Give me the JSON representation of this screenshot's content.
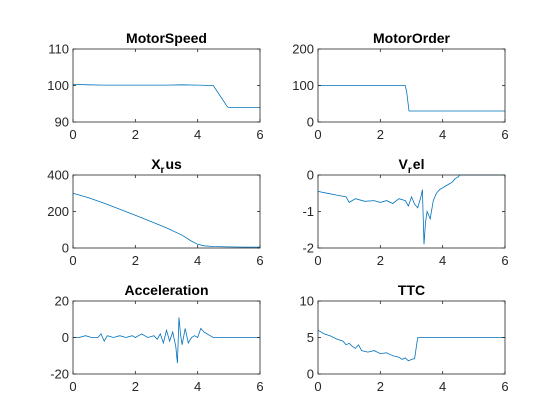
{
  "chart_data": [
    {
      "type": "line",
      "title": "MotorSpeed",
      "xlim": [
        0,
        6
      ],
      "ylim": [
        90,
        110
      ],
      "xticks": [
        0,
        2,
        4,
        6
      ],
      "yticks": [
        90,
        100,
        110
      ],
      "grid": false,
      "color": "#0072BD",
      "x": [
        0,
        0.5,
        1,
        2,
        3,
        3.5,
        4,
        4.5,
        4.95,
        5,
        5.5,
        6
      ],
      "y": [
        100.3,
        100.2,
        100.1,
        100.1,
        100.1,
        100.2,
        100.1,
        100.0,
        94.2,
        94.0,
        94.0,
        94.0
      ]
    },
    {
      "type": "line",
      "title": "MotorOrder",
      "xlim": [
        0,
        6
      ],
      "ylim": [
        0,
        200
      ],
      "xticks": [
        0,
        2,
        4,
        6
      ],
      "yticks": [
        0,
        100,
        200
      ],
      "grid": false,
      "color": "#0072BD",
      "x": [
        0,
        1,
        2,
        2.8,
        2.85,
        2.92,
        3.5,
        4,
        5,
        6
      ],
      "y": [
        100,
        100,
        100,
        100,
        80,
        30,
        30,
        30,
        30,
        30
      ]
    },
    {
      "type": "line",
      "title": "X",
      "title_sub": "r",
      "title_suffix": "us",
      "xlim": [
        0,
        6
      ],
      "ylim": [
        0,
        400
      ],
      "xticks": [
        0,
        2,
        4,
        6
      ],
      "yticks": [
        0,
        200,
        400
      ],
      "grid": false,
      "color": "#0072BD",
      "x": [
        0,
        0.5,
        1,
        1.5,
        2,
        2.5,
        3,
        3.5,
        3.8,
        4,
        4.2,
        4.5,
        5,
        5.5,
        6
      ],
      "y": [
        300,
        275,
        245,
        212,
        180,
        145,
        110,
        70,
        38,
        20,
        12,
        8,
        6,
        5,
        5
      ]
    },
    {
      "type": "line",
      "title": "V",
      "title_sub": "r",
      "title_suffix": "el",
      "xlim": [
        0,
        6
      ],
      "ylim": [
        -2,
        0
      ],
      "xticks": [
        0,
        2,
        4,
        6
      ],
      "yticks": [
        -2,
        -1,
        0
      ],
      "grid": false,
      "color": "#0072BD",
      "x": [
        0,
        0.3,
        0.6,
        0.9,
        1.0,
        1.2,
        1.5,
        1.8,
        2.0,
        2.2,
        2.4,
        2.6,
        2.8,
        2.9,
        3.0,
        3.1,
        3.2,
        3.3,
        3.35,
        3.4,
        3.45,
        3.5,
        3.6,
        3.7,
        3.8,
        3.9,
        4.0,
        4.1,
        4.2,
        4.3,
        4.4,
        4.5,
        4.55,
        5,
        6
      ],
      "y": [
        -0.45,
        -0.5,
        -0.55,
        -0.6,
        -0.75,
        -0.65,
        -0.72,
        -0.7,
        -0.75,
        -0.7,
        -0.78,
        -0.65,
        -0.7,
        -0.85,
        -0.6,
        -0.8,
        -0.9,
        -0.6,
        -0.4,
        -1.9,
        -1.3,
        -1.0,
        -1.2,
        -0.7,
        -0.5,
        -0.4,
        -0.35,
        -0.3,
        -0.25,
        -0.2,
        -0.1,
        -0.05,
        0,
        0,
        0
      ]
    },
    {
      "type": "line",
      "title": "Acceleration",
      "xlim": [
        0,
        6
      ],
      "ylim": [
        -20,
        20
      ],
      "xticks": [
        0,
        2,
        4,
        6
      ],
      "yticks": [
        -20,
        0,
        20
      ],
      "grid": false,
      "color": "#0072BD",
      "x": [
        0,
        0.2,
        0.4,
        0.6,
        0.8,
        0.9,
        1.0,
        1.1,
        1.3,
        1.5,
        1.7,
        1.9,
        2.0,
        2.2,
        2.4,
        2.6,
        2.7,
        2.8,
        2.9,
        3.0,
        3.1,
        3.2,
        3.3,
        3.35,
        3.4,
        3.45,
        3.5,
        3.6,
        3.7,
        3.8,
        3.9,
        4.0,
        4.1,
        4.2,
        4.3,
        4.4,
        4.5,
        5,
        6
      ],
      "y": [
        0,
        0,
        1,
        0,
        0,
        2,
        -2,
        1,
        0,
        1,
        0,
        1,
        0,
        2,
        0,
        1,
        -1,
        2,
        -3,
        4,
        -2,
        3,
        -5,
        -14,
        11,
        2,
        -4,
        5,
        -3,
        0,
        1,
        0,
        5,
        3,
        2,
        1,
        0,
        0,
        0
      ]
    },
    {
      "type": "line",
      "title": "TTC",
      "xlim": [
        0,
        6
      ],
      "ylim": [
        0,
        10
      ],
      "xticks": [
        0,
        2,
        4,
        6
      ],
      "yticks": [
        0,
        5,
        10
      ],
      "grid": false,
      "color": "#0072BD",
      "x": [
        0,
        0.2,
        0.4,
        0.6,
        0.8,
        0.9,
        1.0,
        1.1,
        1.2,
        1.3,
        1.4,
        1.6,
        1.8,
        2.0,
        2.2,
        2.4,
        2.5,
        2.6,
        2.7,
        2.8,
        2.9,
        3.0,
        3.1,
        3.2,
        3.5,
        4,
        5,
        6
      ],
      "y": [
        6,
        5.5,
        5.2,
        4.8,
        4.5,
        4.0,
        4.2,
        3.8,
        3.5,
        4.0,
        3.2,
        3.0,
        3.2,
        2.8,
        2.9,
        2.5,
        2.4,
        2.3,
        2.0,
        2.2,
        1.8,
        2.0,
        2.1,
        5.0,
        5.0,
        5.0,
        5.0,
        5.0
      ]
    }
  ]
}
